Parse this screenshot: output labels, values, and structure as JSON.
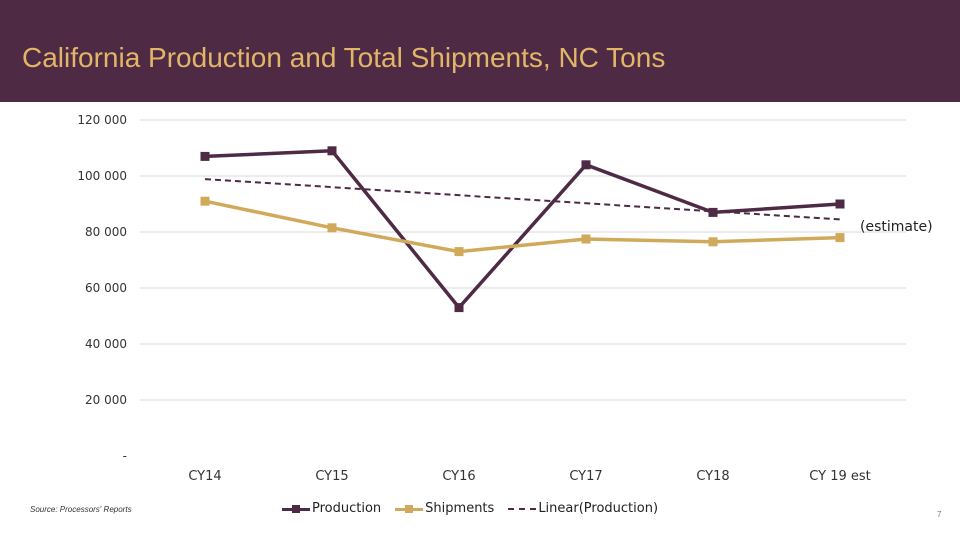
{
  "header": {
    "title": "California Production and Total Shipments, NC Tons"
  },
  "footer": {
    "source": "Source: Processors' Reports",
    "page_number": "7"
  },
  "colors": {
    "header_bg": "#4e2a45",
    "title": "#e2b667",
    "production": "#4e2a45",
    "shipments": "#d0aa5a",
    "trend": "#4e2a45",
    "grid": "#d9d9d9"
  },
  "chart_data": {
    "type": "line",
    "title": "California Production and Total Shipments, NC Tons",
    "categories": [
      "CY14",
      "CY15",
      "CY16",
      "CY17",
      "CY18",
      "CY 19 est"
    ],
    "ylim": [
      0,
      120000
    ],
    "yticks": [
      0,
      20000,
      40000,
      60000,
      80000,
      100000,
      120000
    ],
    "ytick_labels": [
      "-",
      "20 000",
      "40 000",
      "60 000",
      "80 000",
      "100 000",
      "120 000"
    ],
    "grid": true,
    "series": [
      {
        "name": "Production",
        "values": [
          107000,
          109000,
          53000,
          104000,
          87000,
          90000
        ]
      },
      {
        "name": "Shipments",
        "values": [
          91000,
          81500,
          73000,
          77500,
          76500,
          78000
        ]
      }
    ],
    "trendline": {
      "name": "Linear(Production)",
      "start": 98900,
      "end": 84500
    },
    "annotation": {
      "text": "(estimate)",
      "category": "CY 19 est"
    },
    "legend": [
      "Production",
      "Shipments",
      "Linear(Production)"
    ],
    "legend_position": "bottom"
  }
}
